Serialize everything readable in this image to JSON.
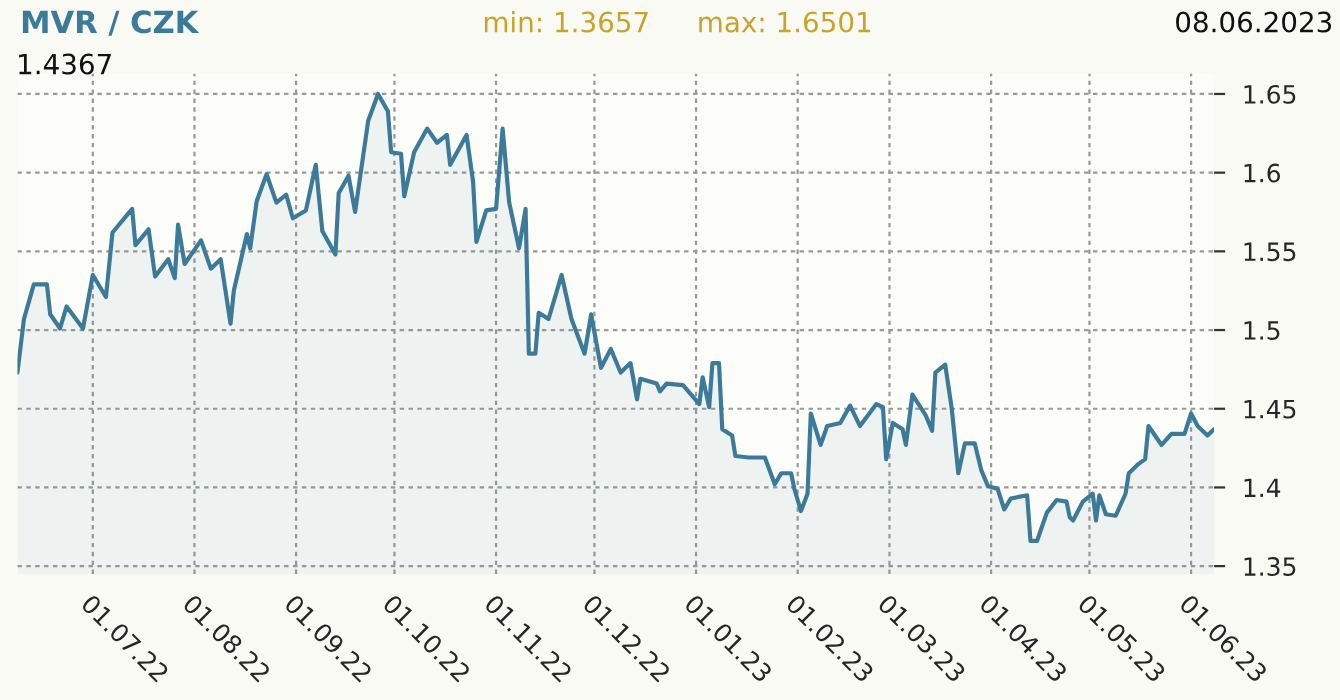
{
  "chart_data": {
    "type": "area",
    "title": "MVR / CZK",
    "annotations": [
      "min: 1.3657",
      "max: 1.6501",
      "08.06.2023",
      "1.4367"
    ],
    "xlim": [
      "2022-06-08",
      "2023-06-08"
    ],
    "xticks": [
      {
        "value": "2022-07-01",
        "label": "01.07.22"
      },
      {
        "value": "2022-08-01",
        "label": "01.08.22"
      },
      {
        "value": "2022-09-01",
        "label": "01.09.22"
      },
      {
        "value": "2022-10-01",
        "label": "01.10.22"
      },
      {
        "value": "2022-11-01",
        "label": "01.11.22"
      },
      {
        "value": "2022-12-01",
        "label": "01.12.22"
      },
      {
        "value": "2023-01-01",
        "label": "01.01.23"
      },
      {
        "value": "2023-02-01",
        "label": "01.02.23"
      },
      {
        "value": "2023-03-01",
        "label": "01.03.23"
      },
      {
        "value": "2023-04-01",
        "label": "01.04.23"
      },
      {
        "value": "2023-05-01",
        "label": "01.05.23"
      },
      {
        "value": "2023-06-01",
        "label": "01.06.23"
      }
    ],
    "ylim": [
      1.345,
      1.663
    ],
    "yticks": [
      1.35,
      1.4,
      1.45,
      1.5,
      1.55,
      1.6,
      1.65
    ],
    "grid": true,
    "legend": false,
    "series": [
      {
        "color": "#3c7a9a",
        "x": [
          "2022-06-08",
          "2022-06-10",
          "2022-06-13",
          "2022-06-17",
          "2022-06-18",
          "2022-06-21",
          "2022-06-23",
          "2022-06-28",
          "2022-07-01",
          "2022-07-05",
          "2022-07-07",
          "2022-07-13",
          "2022-07-14",
          "2022-07-18",
          "2022-07-20",
          "2022-07-24",
          "2022-07-26",
          "2022-07-27",
          "2022-07-29",
          "2022-08-03",
          "2022-08-06",
          "2022-08-09",
          "2022-08-12",
          "2022-08-13",
          "2022-08-17",
          "2022-08-18",
          "2022-08-20",
          "2022-08-23",
          "2022-08-26",
          "2022-08-29",
          "2022-08-31",
          "2022-09-04",
          "2022-09-07",
          "2022-09-09",
          "2022-09-13",
          "2022-09-14",
          "2022-09-17",
          "2022-09-19",
          "2022-09-23",
          "2022-09-26",
          "2022-09-29",
          "2022-09-30",
          "2022-10-03",
          "2022-10-04",
          "2022-10-07",
          "2022-10-11",
          "2022-10-14",
          "2022-10-17",
          "2022-10-18",
          "2022-10-23",
          "2022-10-25",
          "2022-10-26",
          "2022-10-29",
          "2022-11-01",
          "2022-11-03",
          "2022-11-05",
          "2022-11-08",
          "2022-11-10",
          "2022-11-11",
          "2022-11-13",
          "2022-11-14",
          "2022-11-17",
          "2022-11-21",
          "2022-11-24",
          "2022-11-28",
          "2022-11-30",
          "2022-12-03",
          "2022-12-06",
          "2022-12-09",
          "2022-12-12",
          "2022-12-14",
          "2022-12-15",
          "2022-12-20",
          "2022-12-21",
          "2022-12-23",
          "2022-12-28",
          "2023-01-02",
          "2023-01-03",
          "2023-01-05",
          "2023-01-06",
          "2023-01-08",
          "2023-01-09",
          "2023-01-12",
          "2023-01-13",
          "2023-01-17",
          "2023-01-22",
          "2023-01-25",
          "2023-01-27",
          "2023-01-30",
          "2023-01-31",
          "2023-02-02",
          "2023-02-04",
          "2023-02-05",
          "2023-02-08",
          "2023-02-10",
          "2023-02-14",
          "2023-02-17",
          "2023-02-20",
          "2023-02-25",
          "2023-02-27",
          "2023-02-28",
          "2023-03-02",
          "2023-03-05",
          "2023-03-06",
          "2023-03-08",
          "2023-03-12",
          "2023-03-14",
          "2023-03-15",
          "2023-03-18",
          "2023-03-20",
          "2023-03-22",
          "2023-03-24",
          "2023-03-27",
          "2023-03-29",
          "2023-03-31",
          "2023-04-03",
          "2023-04-05",
          "2023-04-07",
          "2023-04-12",
          "2023-04-13",
          "2023-04-15",
          "2023-04-18",
          "2023-04-21",
          "2023-04-24",
          "2023-04-25",
          "2023-04-26",
          "2023-04-29",
          "2023-05-02",
          "2023-05-03",
          "2023-05-04",
          "2023-05-06",
          "2023-05-09",
          "2023-05-12",
          "2023-05-13",
          "2023-05-16",
          "2023-05-18",
          "2023-05-19",
          "2023-05-23",
          "2023-05-26",
          "2023-05-30",
          "2023-06-01",
          "2023-06-03",
          "2023-06-06",
          "2023-06-08"
        ],
        "values": [
          1.473,
          1.507,
          1.529,
          1.529,
          1.51,
          1.501,
          1.515,
          1.501,
          1.535,
          1.521,
          1.562,
          1.577,
          1.554,
          1.564,
          1.534,
          1.545,
          1.533,
          1.567,
          1.542,
          1.557,
          1.539,
          1.545,
          1.504,
          1.525,
          1.561,
          1.552,
          1.582,
          1.599,
          1.581,
          1.586,
          1.571,
          1.576,
          1.605,
          1.563,
          1.548,
          1.587,
          1.598,
          1.575,
          1.633,
          1.65,
          1.639,
          1.613,
          1.612,
          1.585,
          1.613,
          1.628,
          1.619,
          1.624,
          1.605,
          1.624,
          1.594,
          1.556,
          1.576,
          1.577,
          1.628,
          1.581,
          1.552,
          1.577,
          1.485,
          1.485,
          1.511,
          1.507,
          1.535,
          1.507,
          1.485,
          1.51,
          1.476,
          1.488,
          1.473,
          1.479,
          1.456,
          1.469,
          1.466,
          1.461,
          1.466,
          1.465,
          1.453,
          1.47,
          1.451,
          1.479,
          1.479,
          1.437,
          1.433,
          1.42,
          1.419,
          1.419,
          1.402,
          1.409,
          1.409,
          1.399,
          1.385,
          1.396,
          1.447,
          1.427,
          1.439,
          1.441,
          1.452,
          1.439,
          1.453,
          1.451,
          1.418,
          1.441,
          1.437,
          1.427,
          1.459,
          1.446,
          1.436,
          1.473,
          1.478,
          1.45,
          1.409,
          1.428,
          1.428,
          1.411,
          1.401,
          1.399,
          1.386,
          1.393,
          1.395,
          1.366,
          1.366,
          1.384,
          1.392,
          1.391,
          1.381,
          1.379,
          1.391,
          1.396,
          1.379,
          1.395,
          1.383,
          1.382,
          1.396,
          1.409,
          1.415,
          1.418,
          1.439,
          1.427,
          1.434,
          1.434,
          1.447,
          1.439,
          1.433,
          1.437
        ]
      }
    ]
  }
}
